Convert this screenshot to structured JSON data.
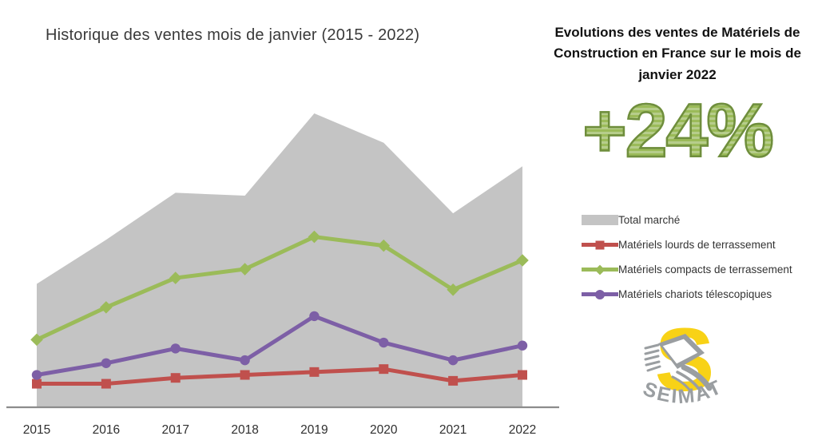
{
  "main_title": "Historique des ventes mois de janvier (2015 - 2022)",
  "panel": {
    "title": "Evolutions des ventes de Matériels de Construction en France sur le mois de janvier 2022",
    "highlight_value": "+24%",
    "highlight_colors": {
      "main": "#9bbb59",
      "light": "#b6cd8b",
      "outline": "#6f8e3d"
    }
  },
  "legend": [
    {
      "label": "Total marché",
      "type": "area",
      "marker": "none",
      "color": "#c4c4c4"
    },
    {
      "label": "Matériels lourds de terrassement",
      "type": "line",
      "marker": "square",
      "color": "#c0504d"
    },
    {
      "label": "Matériels compacts de terrassement",
      "type": "line",
      "marker": "diamond",
      "color": "#9bbb59"
    },
    {
      "label": "Matériels chariots télescopiques",
      "type": "line",
      "marker": "circle",
      "color": "#7d5fa6"
    }
  ],
  "logo": {
    "text": "SEIMAT",
    "colors": {
      "yellow": "#f8d216",
      "gray": "#9a9ea1"
    }
  },
  "chart_data": {
    "type": "area",
    "title": "Historique des ventes mois de janvier (2015 - 2022)",
    "categories": [
      "2015",
      "2016",
      "2017",
      "2018",
      "2019",
      "2020",
      "2021",
      "2022"
    ],
    "series": [
      {
        "name": "Total marché",
        "type": "area",
        "marker": "none",
        "color": "#c4c4c4",
        "values": [
          42,
          57,
          73,
          72,
          100,
          90,
          66,
          82
        ]
      },
      {
        "name": "Matériels lourds de terrassement",
        "type": "line",
        "marker": "square",
        "color": "#c0504d",
        "values": [
          8,
          8,
          10,
          11,
          12,
          13,
          9,
          11
        ]
      },
      {
        "name": "Matériels compacts de terrassement",
        "type": "line",
        "marker": "diamond",
        "color": "#9bbb59",
        "values": [
          23,
          34,
          44,
          47,
          58,
          55,
          40,
          50
        ]
      },
      {
        "name": "Matériels chariots télescopiques",
        "type": "line",
        "marker": "circle",
        "color": "#7d5fa6",
        "values": [
          11,
          15,
          20,
          16,
          31,
          22,
          16,
          21
        ]
      }
    ],
    "xlabel": "",
    "ylabel": "",
    "ylim": [
      0,
      105
    ],
    "y_axis_visible": false,
    "values_note": "No y-axis shown in source; values are relative index estimated from plot geometry (2019 total market = 100)",
    "grid": false,
    "legend_position": "right panel",
    "axis_color": "#8c8c8c",
    "tick_label_color": "#2f2f2f"
  }
}
